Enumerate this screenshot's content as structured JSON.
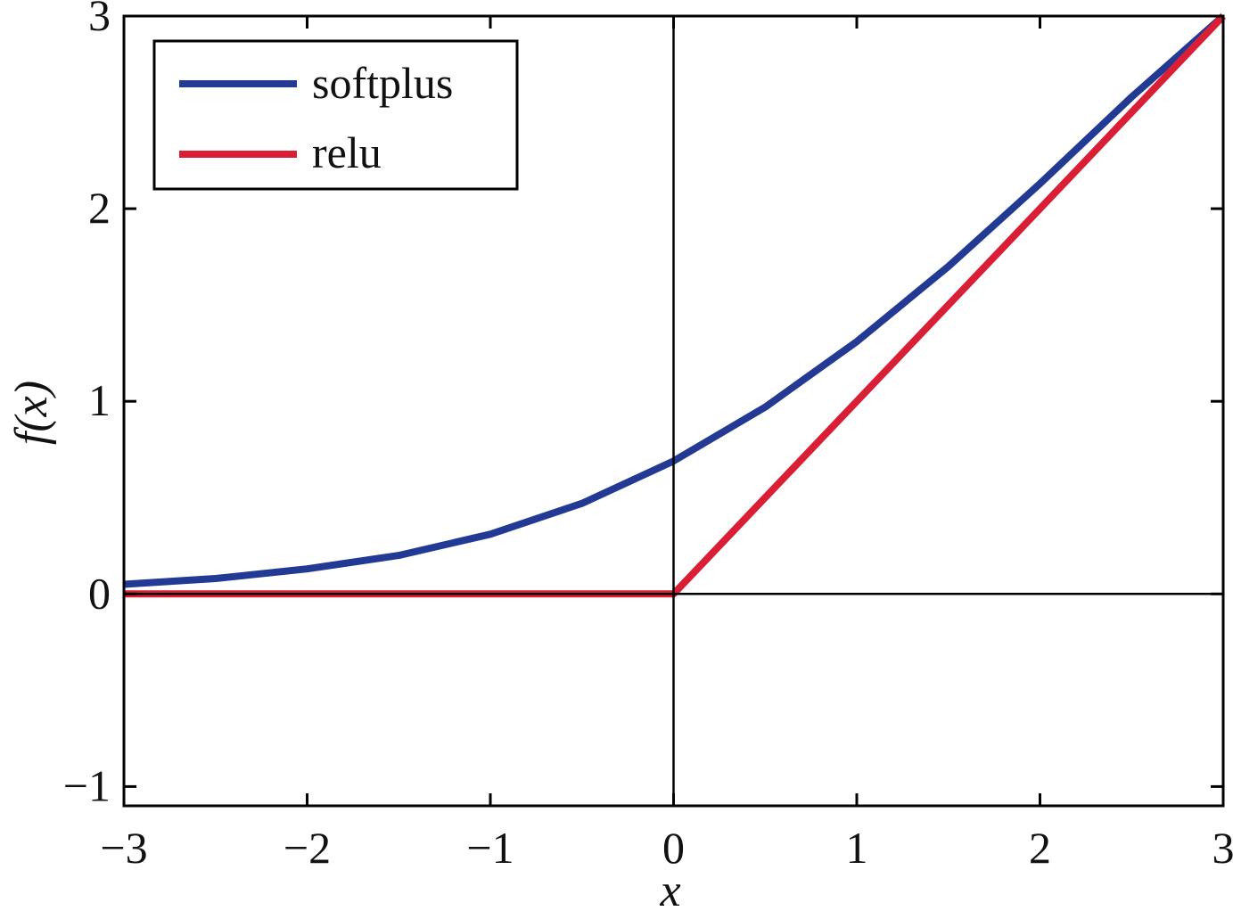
{
  "chart_data": {
    "type": "line",
    "title": "",
    "xlabel": "x",
    "ylabel": "f(x)",
    "xlim": [
      -3,
      3
    ],
    "ylim": [
      -1.1,
      3
    ],
    "x_ticks": [
      -3,
      -2,
      -1,
      0,
      1,
      2,
      3
    ],
    "y_ticks": [
      -1,
      0,
      1,
      2,
      3
    ],
    "x_tick_labels": [
      "−3",
      "−2",
      "−1",
      "0",
      "1",
      "2",
      "3"
    ],
    "y_tick_labels": [
      "−1",
      "0",
      "1",
      "2",
      "3"
    ],
    "zero_lines": true,
    "grid": false,
    "legend_position": "top-left",
    "series": [
      {
        "name": "softplus",
        "color": "#233a94",
        "x": [
          -3,
          -2.5,
          -2,
          -1.5,
          -1,
          -0.5,
          0,
          0.5,
          1,
          1.5,
          2,
          2.5,
          3
        ],
        "y": [
          0.05,
          0.08,
          0.13,
          0.2,
          0.31,
          0.47,
          0.69,
          0.97,
          1.31,
          1.7,
          2.13,
          2.58,
          3.0
        ]
      },
      {
        "name": "relu",
        "color": "#d91f36",
        "x": [
          -3,
          0,
          3
        ],
        "y": [
          0,
          0,
          3
        ]
      }
    ]
  }
}
